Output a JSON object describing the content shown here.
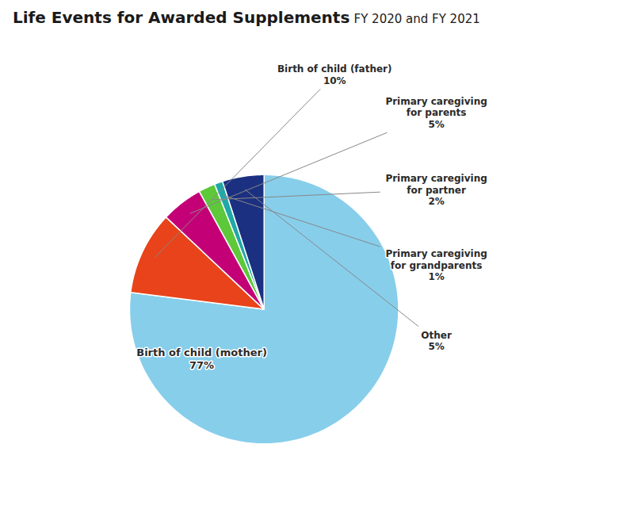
{
  "chart_data": {
    "type": "pie",
    "title": "Life Events for Awarded Supplements",
    "subtitle": "FY 2020 and FY 2021",
    "categories": [
      "Birth of child (mother)",
      "Birth of child (father)",
      "Primary caregiving\nfor parents",
      "Primary caregiving\nfor partner",
      "Primary caregiving\nfor grandparents",
      "Other"
    ],
    "values": [
      77,
      10,
      5,
      2,
      1,
      5
    ],
    "value_labels": [
      "77%",
      "10%",
      "5%",
      "2%",
      "1%",
      "5%"
    ],
    "colors": [
      "#87CEEB",
      "#E8431A",
      "#C40077",
      "#5DC83A",
      "#20A8A8",
      "#1B3080"
    ],
    "data_labels": true
  }
}
